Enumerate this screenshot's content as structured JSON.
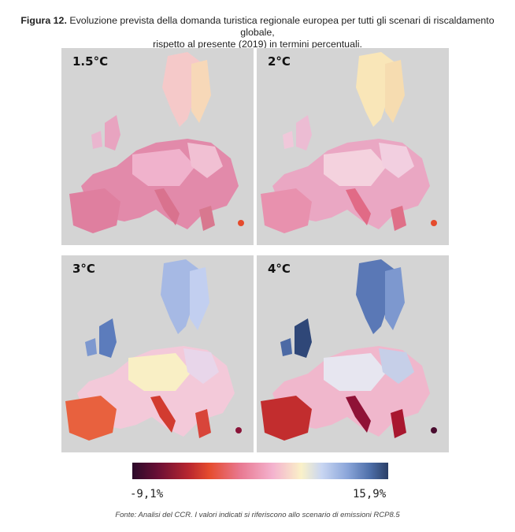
{
  "figure": {
    "label": "Figura 12.",
    "title_line1": "Evoluzione prevista della domanda turistica regionale europea per tutti gli scenari di riscaldamento globale,",
    "title_line2": "rispetto al presente (2019) in termini percentuali."
  },
  "panels": [
    {
      "label": "1.5°C",
      "scheme": "pink"
    },
    {
      "label": "2°C",
      "scheme": "pink-light"
    },
    {
      "label": "3°C",
      "scheme": "blue-red"
    },
    {
      "label": "4°C",
      "scheme": "blue-red-strong"
    }
  ],
  "legend": {
    "min_label": "-9,1%",
    "max_label": "15,9%",
    "min_color": "#2b0a2a",
    "mid_color": "#faf1c8",
    "max_color": "#2a3f66"
  },
  "source": "Fonte: Analisi del CCR. I valori indicati si riferiscono allo scenario di emissioni RCP8.5"
}
